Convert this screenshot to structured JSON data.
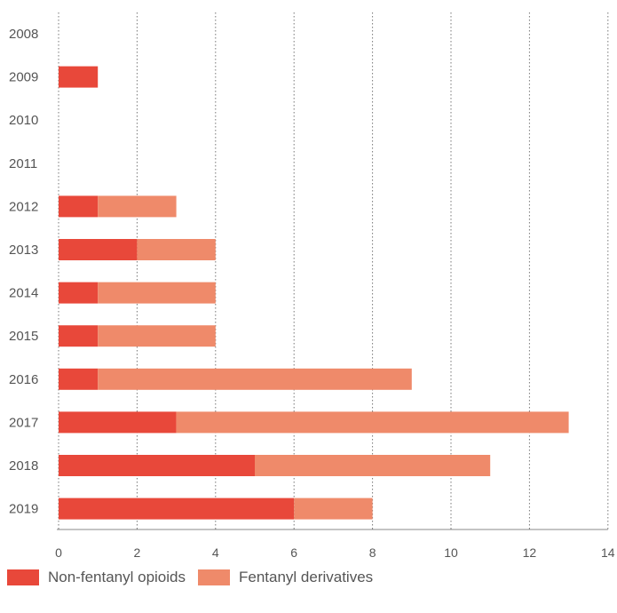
{
  "chart_data": {
    "type": "bar",
    "orientation": "horizontal",
    "stacked": true,
    "categories": [
      "2008",
      "2009",
      "2010",
      "2011",
      "2012",
      "2013",
      "2014",
      "2015",
      "2016",
      "2017",
      "2018",
      "2019"
    ],
    "series": [
      {
        "name": "Non-fentanyl opioids",
        "color": "#e8483a",
        "values": [
          0,
          1,
          0,
          0,
          1,
          2,
          1,
          1,
          1,
          3,
          5,
          6
        ]
      },
      {
        "name": "Fentanyl derivatives",
        "color": "#ef8a6a",
        "values": [
          0,
          0,
          0,
          0,
          2,
          2,
          3,
          3,
          8,
          10,
          6,
          2
        ]
      }
    ],
    "x_ticks": [
      "0",
      "2",
      "4",
      "6",
      "8",
      "10",
      "12",
      "14"
    ],
    "xlim": [
      0,
      14
    ],
    "grid": "vertical-dotted",
    "legend_position": "bottom-left"
  }
}
